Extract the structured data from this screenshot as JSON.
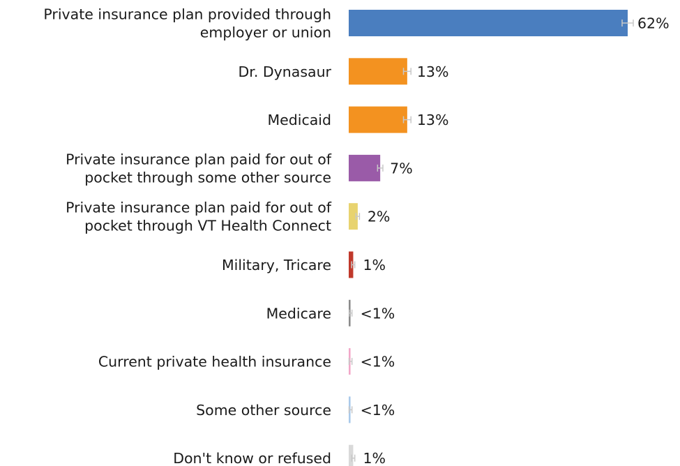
{
  "chart_data": {
    "type": "bar",
    "orientation": "horizontal",
    "categories": [
      "Private insurance plan provided through employer or union",
      "Dr. Dynasaur",
      "Medicaid",
      "Private insurance plan paid for out of pocket through some other source",
      "Private insurance plan paid for out of pocket through VT Health Connect",
      "Military, Tricare",
      "Medicare",
      "Current private health insurance",
      "Some other source",
      "Don't know or refused"
    ],
    "category_lines": [
      [
        "Private insurance plan provided through",
        "employer or union"
      ],
      [
        "Dr. Dynasaur"
      ],
      [
        "Medicaid"
      ],
      [
        "Private insurance plan paid for out of",
        "pocket through some other source"
      ],
      [
        "Private insurance plan paid for out of",
        "pocket through VT Health Connect"
      ],
      [
        "Military, Tricare"
      ],
      [
        "Medicare"
      ],
      [
        "Current private health insurance"
      ],
      [
        "Some other source"
      ],
      [
        "Don't know or refused"
      ]
    ],
    "values": [
      62,
      13,
      13,
      7,
      2,
      1,
      0.4,
      0.4,
      0.4,
      1
    ],
    "value_labels": [
      "62%",
      "13%",
      "13%",
      "7%",
      "2%",
      "1%",
      "<1%",
      "<1%",
      "<1%",
      "1%"
    ],
    "colors": [
      "#4a7ebf",
      "#f39220",
      "#f39220",
      "#9a5ba8",
      "#e8d36f",
      "#c0392b",
      "#8a8a8a",
      "#f2a7c8",
      "#a9c9ea",
      "#d9d9d9"
    ],
    "error_bars": true,
    "title": "",
    "xlabel": "",
    "ylabel": "",
    "xlim": [
      0,
      62
    ]
  }
}
